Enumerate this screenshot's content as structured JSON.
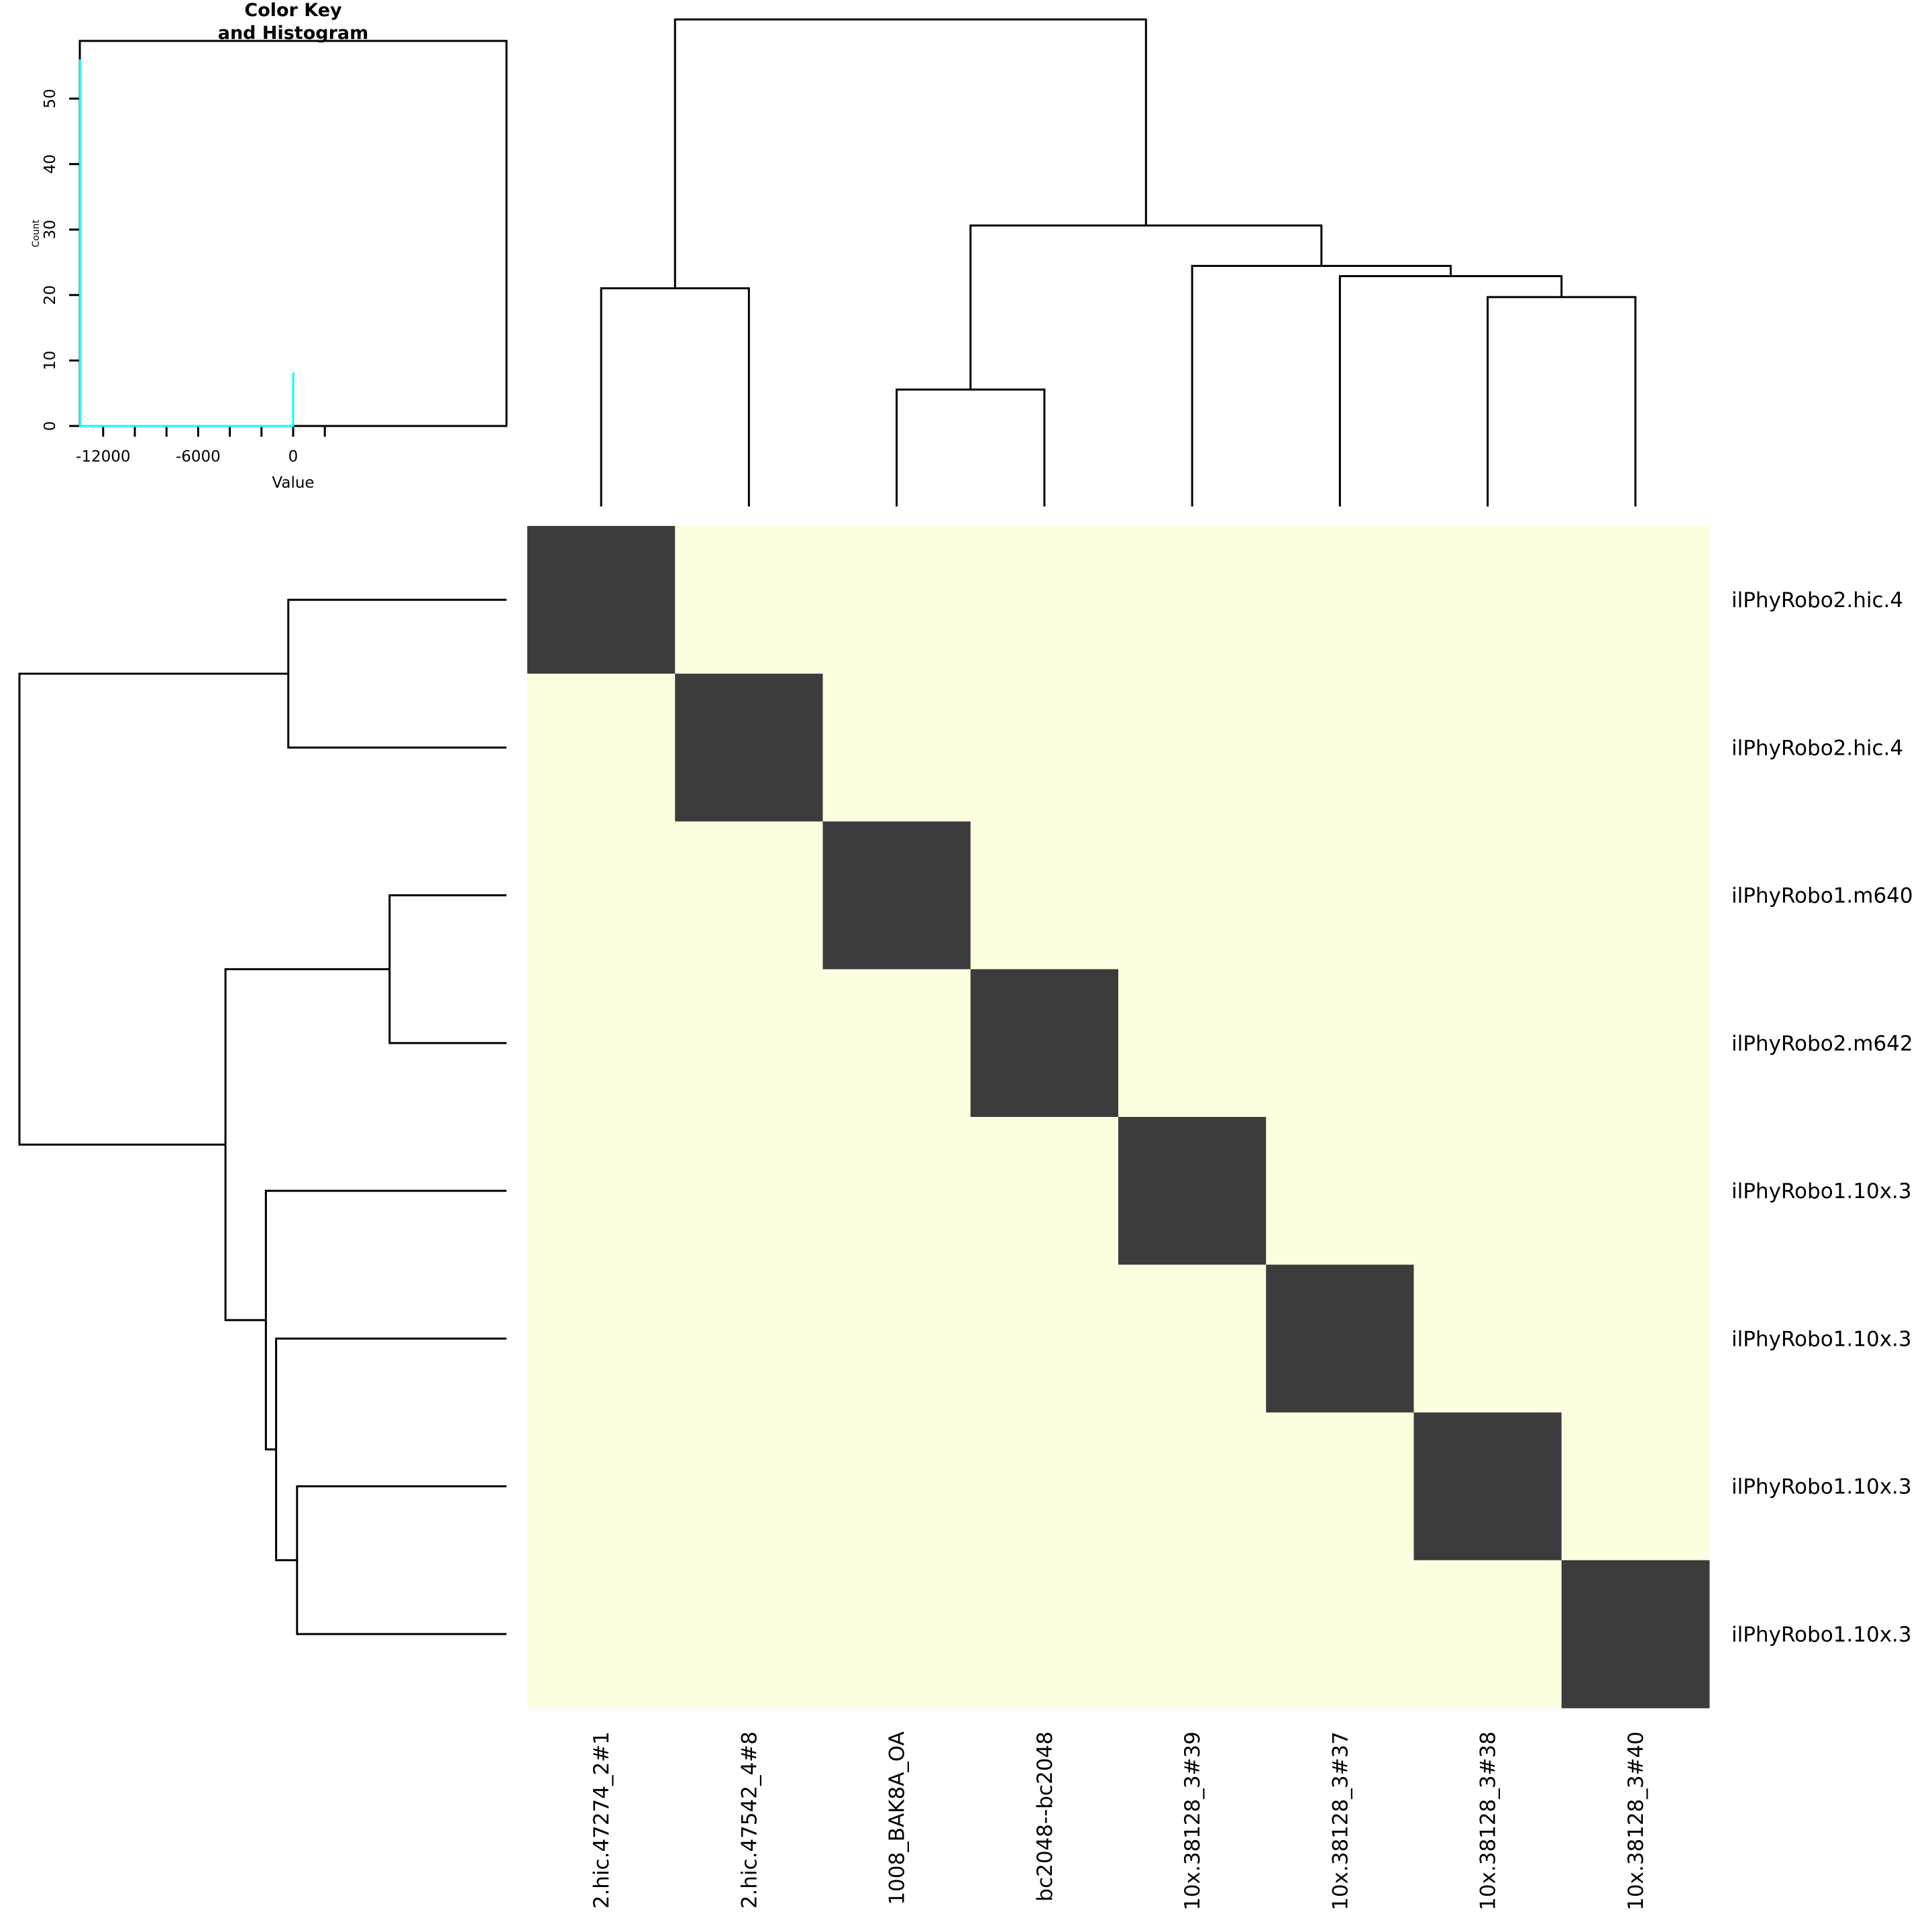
{
  "chart_data": [
    {
      "type": "heatmap",
      "row_labels": [
        "ilPhyRobo2.hic.4",
        "ilPhyRobo2.hic.4",
        "ilPhyRobo1.m640",
        "ilPhyRobo2.m642",
        "ilPhyRobo1.10x.3",
        "ilPhyRobo1.10x.3",
        "ilPhyRobo1.10x.3",
        "ilPhyRobo1.10x.3"
      ],
      "col_labels": [
        "2.hic.47274_2#1",
        "2.hic.47542_4#8",
        "1008_BAK8A_OA",
        "bc2048--bc2048",
        "10x.38128_3#39",
        "10x.38128_3#37",
        "10x.38128_3#38",
        "10x.38128_3#40"
      ],
      "matrix_pattern": "diagonal",
      "diagonal_color": "#3c3c3c",
      "offdiagonal_color": "#fdfde0",
      "dendrogram_merges": [
        [
          -1,
          -2,
          0.448
        ],
        [
          -3,
          -4,
          0.24
        ],
        [
          -7,
          -8,
          0.43
        ],
        [
          -6,
          3,
          0.473
        ],
        [
          -5,
          4,
          0.494
        ],
        [
          2,
          5,
          0.577
        ],
        [
          1,
          6,
          1.0
        ]
      ]
    },
    {
      "type": "histogram",
      "title": "Color Key\nand Histogram",
      "title_lines": [
        "Color Key",
        "and Histogram"
      ],
      "xlabel": "Value",
      "ylabel": "Count",
      "xticks": [
        "-12000",
        "-6000",
        "0"
      ],
      "xtick_values": [
        -12000,
        -10000,
        -8000,
        -6000,
        -4000,
        -2000,
        0,
        2000
      ],
      "yticks": [
        "0",
        "10",
        "20",
        "30",
        "40",
        "50"
      ],
      "xlim": [
        -13460,
        13460
      ],
      "ylim": [
        0,
        58.8
      ],
      "bins": [
        {
          "x": -13460,
          "count": 56
        },
        {
          "x": 0,
          "count": 8
        }
      ],
      "line_color": "#00ffff"
    }
  ]
}
